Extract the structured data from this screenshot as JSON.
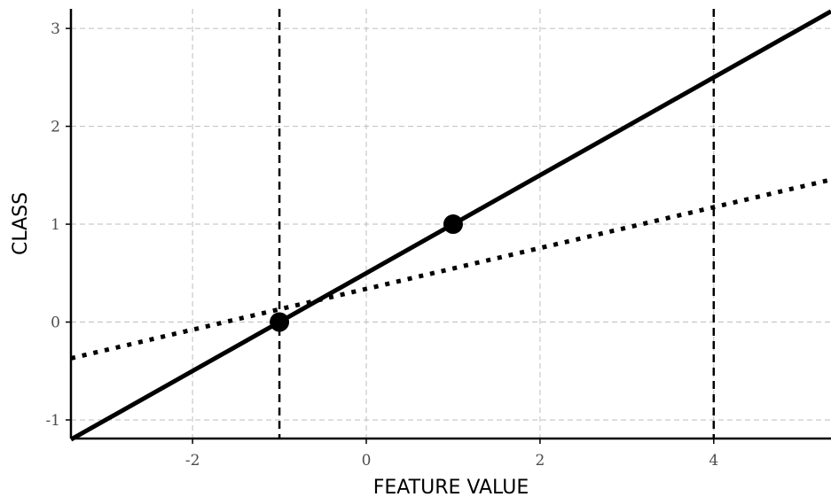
{
  "chart_data": {
    "type": "line",
    "title": "",
    "xlabel": "FEATURE VALUE",
    "ylabel": "CLASS",
    "xlim": [
      -3.4,
      5.35
    ],
    "ylim": [
      -1.19,
      3.2
    ],
    "x_ticks": [
      -2,
      0,
      2,
      4
    ],
    "y_ticks": [
      -1,
      0,
      1,
      2,
      3
    ],
    "x_tick_labels": [
      "-2",
      "0",
      "2",
      "4"
    ],
    "y_tick_labels": [
      "-1",
      "0",
      "1",
      "2",
      "3"
    ],
    "grid": true,
    "series": [
      {
        "style": "solid",
        "x": [
          -3.4,
          5.35
        ],
        "y": [
          -1.2,
          3.175
        ]
      },
      {
        "style": "dotted",
        "x": [
          -3.4,
          5.35
        ],
        "y": [
          -0.37,
          1.455
        ]
      }
    ],
    "points": [
      {
        "x": -1,
        "y": 0
      },
      {
        "x": 1,
        "y": 1
      }
    ],
    "vlines": [
      -1,
      4
    ],
    "colors": {
      "line": "#000000",
      "grid": "#bebebe",
      "tick_text": "#4d4d4d"
    }
  }
}
